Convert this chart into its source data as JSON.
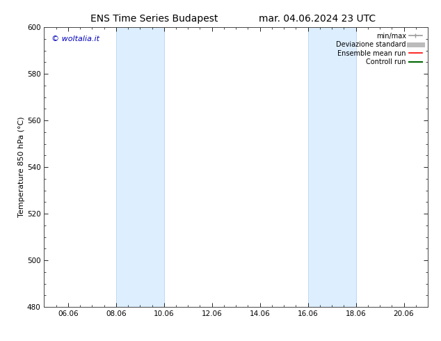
{
  "title_left": "ENS Time Series Budapest",
  "title_right": "mar. 04.06.2024 23 UTC",
  "ylabel": "Temperature 850 hPa (°C)",
  "ylim": [
    480,
    600
  ],
  "yticks": [
    480,
    500,
    520,
    540,
    560,
    580,
    600
  ],
  "xlim": [
    0,
    16
  ],
  "xtick_labels": [
    "06.06",
    "08.06",
    "10.06",
    "12.06",
    "14.06",
    "16.06",
    "18.06",
    "20.06"
  ],
  "xtick_positions": [
    1,
    3,
    5,
    7,
    9,
    11,
    13,
    15
  ],
  "shaded_bands": [
    {
      "x_start": 3,
      "x_end": 5
    },
    {
      "x_start": 11,
      "x_end": 13
    }
  ],
  "shaded_color": "#ddeeff",
  "shaded_edge_color": "#b8d4ee",
  "watermark_text": "© woltalia.it",
  "watermark_color": "#0000bb",
  "legend_items": [
    {
      "label": "min/max",
      "color": "#999999",
      "lw": 1.2
    },
    {
      "label": "Deviazione standard",
      "color": "#bbbbbb",
      "lw": 5
    },
    {
      "label": "Ensemble mean run",
      "color": "#ff0000",
      "lw": 1.2
    },
    {
      "label": "Controll run",
      "color": "#006600",
      "lw": 1.5
    }
  ],
  "bg_color": "#ffffff",
  "spine_color": "#444444",
  "title_fontsize": 10,
  "axis_label_fontsize": 8,
  "tick_fontsize": 7.5,
  "legend_fontsize": 7
}
